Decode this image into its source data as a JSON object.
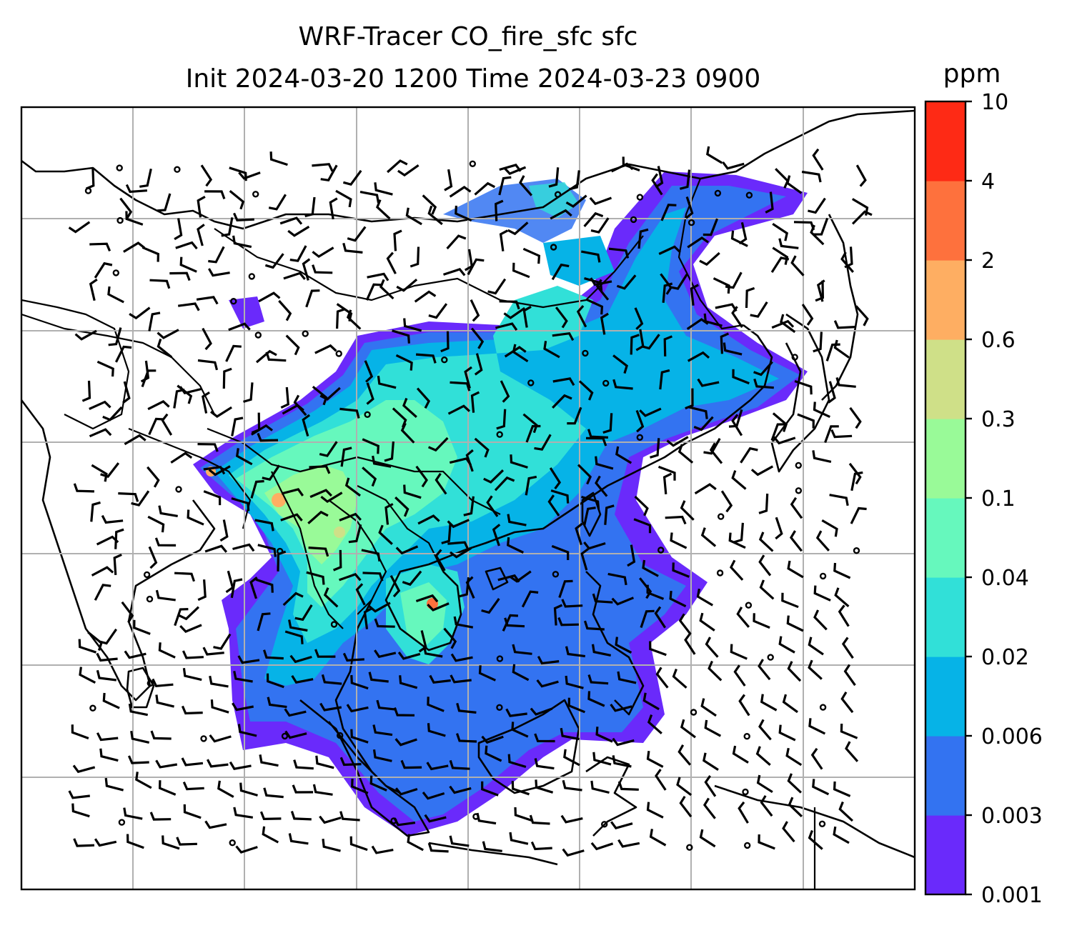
{
  "chart_data": {
    "type": "heatmap",
    "title": "WRF-Tracer CO_fire_sfc sfc",
    "subtitle": "Init 2024-03-20 1200 Time 2024-03-23 0900",
    "colorbar": {
      "unit": "ppm",
      "levels": [
        "0.001",
        "0.003",
        "0.006",
        "0.02",
        "0.04",
        "0.1",
        "0.3",
        "0.6",
        "2",
        "4",
        "10"
      ],
      "colors": [
        "#6a2afb",
        "#3373f1",
        "#06b3e7",
        "#31e0d8",
        "#66f8bd",
        "#99fa98",
        "#cfe088",
        "#feae62",
        "#fe713d",
        "#fe2a15"
      ]
    },
    "grid": true,
    "overlays": [
      "coastlines",
      "country-borders",
      "wind-barbs"
    ]
  }
}
